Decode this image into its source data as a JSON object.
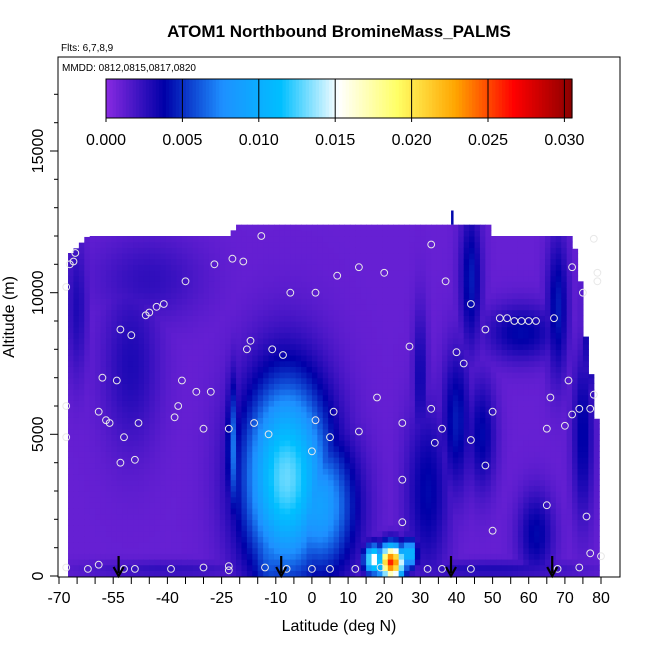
{
  "chart_data": {
    "type": "heatmap",
    "title": "ATOM1 Northbound BromineMass_PALMS",
    "flights_label": "Flts: 6,7,8,9",
    "dates_label": "MMDD: 0812,0815,0817,0820",
    "xlabel": "Latitude (deg N)",
    "ylabel": "Altitude (m)",
    "xlim": [
      -70,
      82
    ],
    "ylim": [
      0,
      18000
    ],
    "x_ticks": [
      -70,
      -55,
      -40,
      -25,
      -10,
      0,
      10,
      20,
      30,
      40,
      50,
      60,
      70,
      80
    ],
    "x_tick_labels": [
      "-70",
      "-55",
      "-40",
      "-25",
      "-10",
      "0",
      "10",
      "20",
      "30",
      "40",
      "50",
      "60",
      "70",
      "80"
    ],
    "y_ticks": [
      0,
      5000,
      10000,
      15000
    ],
    "y_tick_labels": [
      "0",
      "5000",
      "10000",
      "15000"
    ],
    "colorbar": {
      "range": [
        0,
        0.0305
      ],
      "ticks": [
        0.0,
        0.005,
        0.01,
        0.015,
        0.02,
        0.025,
        0.03
      ],
      "tick_labels": [
        "0.000",
        "0.005",
        "0.010",
        "0.015",
        "0.020",
        "0.025",
        "0.030"
      ],
      "colors": [
        "#8a2be2",
        "#0000a8",
        "#1e90ff",
        "#00bfff",
        "#ffffff",
        "#ffff66",
        "#ffa500",
        "#ff0000",
        "#8b0000"
      ]
    },
    "background_value": 0.001,
    "field_top_profile": [
      {
        "lat": -66.5,
        "alt": 11400
      },
      {
        "lat": -62,
        "alt": 12000
      },
      {
        "lat": -22,
        "alt": 12000
      },
      {
        "lat": -21.5,
        "alt": 12400
      },
      {
        "lat": 49,
        "alt": 12400
      },
      {
        "lat": 49.5,
        "alt": 12000
      },
      {
        "lat": 72,
        "alt": 12000
      },
      {
        "lat": 73,
        "alt": 11400
      },
      {
        "lat": 75,
        "alt": 9800
      },
      {
        "lat": 76,
        "alt": 8000
      },
      {
        "lat": 78,
        "alt": 6600
      },
      {
        "lat": 79,
        "alt": 5200
      },
      {
        "lat": 80,
        "alt": 3000
      },
      {
        "lat": 80,
        "alt": 0
      }
    ],
    "field_left_lat": -67.5,
    "features": [
      {
        "lat": -7,
        "alt": 3500,
        "wlat": 12,
        "walt": 3500,
        "value": 0.013
      },
      {
        "lat": -11,
        "alt": 2000,
        "wlat": 7,
        "walt": 3000,
        "value": 0.008
      },
      {
        "lat": 2,
        "alt": 2500,
        "wlat": 10,
        "walt": 2500,
        "value": 0.009
      },
      {
        "lat": -22,
        "alt": 4500,
        "wlat": 1.5,
        "walt": 2500,
        "value": 0.007
      },
      {
        "lat": -10,
        "alt": 6500,
        "wlat": 6,
        "walt": 1200,
        "value": 0.004
      },
      {
        "lat": -2,
        "alt": 4800,
        "wlat": 10,
        "walt": 1500,
        "value": 0.006
      },
      {
        "lat": 22,
        "alt": 500,
        "wlat": 3.5,
        "walt": 600,
        "value": 0.026
      },
      {
        "lat": 17,
        "alt": 600,
        "wlat": 2.5,
        "walt": 500,
        "value": 0.016
      },
      {
        "lat": 27,
        "alt": 800,
        "wlat": 2,
        "walt": 500,
        "value": 0.012
      },
      {
        "lat": 32,
        "alt": 3000,
        "wlat": 6,
        "walt": 3000,
        "value": 0.004
      },
      {
        "lat": 40,
        "alt": 5500,
        "wlat": 4,
        "walt": 2500,
        "value": 0.0045
      },
      {
        "lat": 47,
        "alt": 5000,
        "wlat": 4,
        "walt": 2000,
        "value": 0.004
      },
      {
        "lat": 44,
        "alt": 10500,
        "wlat": 3,
        "walt": 2500,
        "value": 0.0045
      },
      {
        "lat": 58,
        "alt": 8600,
        "wlat": 10,
        "walt": 1000,
        "value": 0.004
      },
      {
        "lat": 68,
        "alt": 9500,
        "wlat": 3,
        "walt": 2500,
        "value": 0.0045
      },
      {
        "lat": 77,
        "alt": 9000,
        "wlat": 2,
        "walt": 2500,
        "value": 0.0045
      },
      {
        "lat": 75,
        "alt": 5000,
        "wlat": 3,
        "walt": 3000,
        "value": 0.004
      },
      {
        "lat": 30,
        "alt": 7000,
        "wlat": 2,
        "walt": 2500,
        "value": 0.0035
      },
      {
        "lat": -50,
        "alt": 7500,
        "wlat": 8,
        "walt": 3000,
        "value": 0.003
      },
      {
        "lat": -45,
        "alt": 10500,
        "wlat": 15,
        "walt": 1500,
        "value": 0.0025
      },
      {
        "lat": -65,
        "alt": 9500,
        "wlat": 3,
        "walt": 2500,
        "value": 0.003
      },
      {
        "lat": 62,
        "alt": 1500,
        "wlat": 5,
        "walt": 1500,
        "value": 0.004
      },
      {
        "lat": 50,
        "alt": 250,
        "wlat": 25,
        "walt": 300,
        "value": 0.003
      },
      {
        "lat": -40,
        "alt": 250,
        "wlat": 25,
        "walt": 300,
        "value": 0.0025
      }
    ],
    "samples": [
      {
        "lat": -68,
        "alt": 10200
      },
      {
        "lat": -67,
        "alt": 11000
      },
      {
        "lat": -66,
        "alt": 11100
      },
      {
        "lat": -65.5,
        "alt": 11400
      },
      {
        "lat": -68,
        "alt": 6000
      },
      {
        "lat": -68,
        "alt": 4900
      },
      {
        "lat": -68,
        "alt": 300
      },
      {
        "lat": -58,
        "alt": 7000
      },
      {
        "lat": -59,
        "alt": 5800
      },
      {
        "lat": -57,
        "alt": 5500
      },
      {
        "lat": -56,
        "alt": 5400
      },
      {
        "lat": -54,
        "alt": 6900
      },
      {
        "lat": -53,
        "alt": 8700
      },
      {
        "lat": -50,
        "alt": 8500
      },
      {
        "lat": -52,
        "alt": 4900
      },
      {
        "lat": -53,
        "alt": 4000
      },
      {
        "lat": -49,
        "alt": 4100
      },
      {
        "lat": -48,
        "alt": 5400
      },
      {
        "lat": -46,
        "alt": 9200
      },
      {
        "lat": -45,
        "alt": 9300
      },
      {
        "lat": -43,
        "alt": 9500
      },
      {
        "lat": -41,
        "alt": 9600
      },
      {
        "lat": -35,
        "alt": 10400
      },
      {
        "lat": -27,
        "alt": 11000
      },
      {
        "lat": -22,
        "alt": 11200
      },
      {
        "lat": -19,
        "alt": 11100
      },
      {
        "lat": -14,
        "alt": 12000
      },
      {
        "lat": -18,
        "alt": 8000
      },
      {
        "lat": -17,
        "alt": 8300
      },
      {
        "lat": -11,
        "alt": 8000
      },
      {
        "lat": -8,
        "alt": 7800
      },
      {
        "lat": -6,
        "alt": 10000
      },
      {
        "lat": 1,
        "alt": 10000
      },
      {
        "lat": 7,
        "alt": 10600
      },
      {
        "lat": 13,
        "alt": 10900
      },
      {
        "lat": 20,
        "alt": 10700
      },
      {
        "lat": 33,
        "alt": 11700
      },
      {
        "lat": 37,
        "alt": 10400
      },
      {
        "lat": 44,
        "alt": 9600
      },
      {
        "lat": 48,
        "alt": 8700
      },
      {
        "lat": 52,
        "alt": 9100
      },
      {
        "lat": 54,
        "alt": 9100
      },
      {
        "lat": 56,
        "alt": 9000
      },
      {
        "lat": 58,
        "alt": 9000
      },
      {
        "lat": 60,
        "alt": 9000
      },
      {
        "lat": 62,
        "alt": 9000
      },
      {
        "lat": 67,
        "alt": 9100
      },
      {
        "lat": 72,
        "alt": 10900
      },
      {
        "lat": 75,
        "alt": 10000
      },
      {
        "lat": 78,
        "alt": 11900
      },
      {
        "lat": 79,
        "alt": 10700
      },
      {
        "lat": 79,
        "alt": 10400
      },
      {
        "lat": 27,
        "alt": 8100
      },
      {
        "lat": 40,
        "alt": 7900
      },
      {
        "lat": 42,
        "alt": 7500
      },
      {
        "lat": -36,
        "alt": 6900
      },
      {
        "lat": -37,
        "alt": 6000
      },
      {
        "lat": -32,
        "alt": 6500
      },
      {
        "lat": -28,
        "alt": 6500
      },
      {
        "lat": -38,
        "alt": 5600
      },
      {
        "lat": -30,
        "alt": 5200
      },
      {
        "lat": -23,
        "alt": 5200
      },
      {
        "lat": -16,
        "alt": 5400
      },
      {
        "lat": -12,
        "alt": 5000
      },
      {
        "lat": 1,
        "alt": 5500
      },
      {
        "lat": 5,
        "alt": 4900
      },
      {
        "lat": 6,
        "alt": 5800
      },
      {
        "lat": 13,
        "alt": 5100
      },
      {
        "lat": 18,
        "alt": 6300
      },
      {
        "lat": 25,
        "alt": 5400
      },
      {
        "lat": 33,
        "alt": 5900
      },
      {
        "lat": 34,
        "alt": 4700
      },
      {
        "lat": 36,
        "alt": 5200
      },
      {
        "lat": 44,
        "alt": 4800
      },
      {
        "lat": 48,
        "alt": 3900
      },
      {
        "lat": 50,
        "alt": 5800
      },
      {
        "lat": 0,
        "alt": 4400
      },
      {
        "lat": 25,
        "alt": 3400
      },
      {
        "lat": 25,
        "alt": 1900
      },
      {
        "lat": 50,
        "alt": 1600
      },
      {
        "lat": 65,
        "alt": 2500
      },
      {
        "lat": 66,
        "alt": 6300
      },
      {
        "lat": 65,
        "alt": 5200
      },
      {
        "lat": 70,
        "alt": 5300
      },
      {
        "lat": 72,
        "alt": 5700
      },
      {
        "lat": 74,
        "alt": 5900
      },
      {
        "lat": 71,
        "alt": 6900
      },
      {
        "lat": 77,
        "alt": 5900
      },
      {
        "lat": 78,
        "alt": 6400
      },
      {
        "lat": 76,
        "alt": 2100
      },
      {
        "lat": 77,
        "alt": 800
      },
      {
        "lat": 80,
        "alt": 700
      },
      {
        "lat": 74,
        "alt": 300
      },
      {
        "lat": 68,
        "alt": 250
      },
      {
        "lat": -62,
        "alt": 250
      },
      {
        "lat": -59,
        "alt": 400
      },
      {
        "lat": -52,
        "alt": 250
      },
      {
        "lat": -49,
        "alt": 250
      },
      {
        "lat": -39,
        "alt": 250
      },
      {
        "lat": -30,
        "alt": 300
      },
      {
        "lat": -23,
        "alt": 350
      },
      {
        "lat": -23,
        "alt": 200
      },
      {
        "lat": -13,
        "alt": 300
      },
      {
        "lat": -7,
        "alt": 250
      },
      {
        "lat": 0,
        "alt": 250
      },
      {
        "lat": 5,
        "alt": 250
      },
      {
        "lat": 12,
        "alt": 250
      },
      {
        "lat": 19,
        "alt": 300
      },
      {
        "lat": 32,
        "alt": 250
      },
      {
        "lat": 36,
        "alt": 250
      },
      {
        "lat": 44,
        "alt": 250
      }
    ],
    "arrows": [
      -53.5,
      -8.5,
      38.5,
      66.5
    ]
  }
}
